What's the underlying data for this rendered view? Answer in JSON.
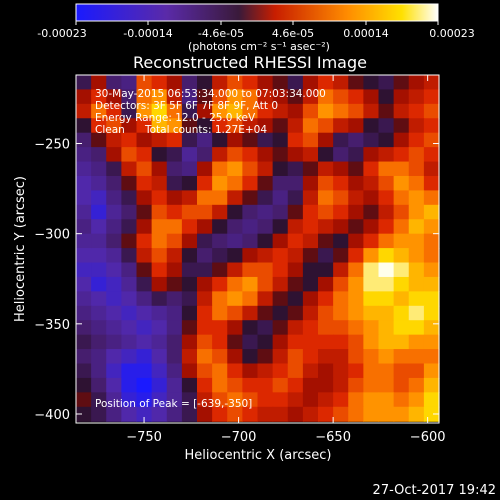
{
  "figure": {
    "title": "Reconstructed RHESSI Image",
    "footer_timestamp": "27-Oct-2017 19:42"
  },
  "colorbar": {
    "tick_labels": [
      "-0.00023",
      "-0.00014",
      "-4.6e-05",
      "4.6e-05",
      "0.00014",
      "0.00023"
    ],
    "unit_label": "(photons cm⁻² s⁻¹ asec⁻²)",
    "range": [
      -0.00023,
      0.00023
    ]
  },
  "annotations": {
    "time_range": "30-May-2015 06:53:34.000 to 07:03:34.000",
    "detectors": "Detectors: 3F 5F 6F 7F 8F 9F, Att 0",
    "energy_range": "Energy Range: 12.0 - 25.0 keV",
    "algorithm": "Clean",
    "total_counts": "Total counts: 1.27E+04",
    "peak_position": "Position of Peak = [-639,-350]"
  },
  "chart_data": {
    "type": "heatmap",
    "title": "Reconstructed RHESSI Image",
    "xlabel": "Heliocentric X (arcsec)",
    "ylabel": "Heliocentric Y (arcsec)",
    "xlim": [
      -786,
      -594
    ],
    "ylim": [
      -405,
      -212
    ],
    "xticks": [
      -750,
      -700,
      -650,
      -600
    ],
    "yticks": [
      -250,
      -300,
      -350,
      -400
    ],
    "xtick_labels": [
      "−750",
      "−700",
      "−650",
      "−600"
    ],
    "ytick_labels": [
      "−250",
      "−300",
      "−350",
      "−400"
    ],
    "colormap": "blue-purple-red-orange-yellow-white",
    "peak": [
      -639,
      -350
    ],
    "grid": {
      "x0": -786,
      "dx": 8,
      "nx": 24,
      "y0": -212,
      "dy": -8,
      "ny": 24,
      "values": [
        [
          -0.2,
          0.1,
          -0.3,
          -0.4,
          0.4,
          0.3,
          0.1,
          -0.3,
          -0.1,
          0.2,
          0.4,
          0.3,
          0.1,
          0.0,
          -0.2,
          0.1,
          0.3,
          0.2,
          0.0,
          -0.1,
          -0.2,
          0.0,
          0.1,
          0.2
        ],
        [
          0.1,
          0.3,
          0.1,
          -0.3,
          0.5,
          0.6,
          0.2,
          -0.4,
          0.0,
          0.4,
          0.6,
          0.5,
          0.2,
          0.1,
          0.0,
          0.2,
          0.5,
          0.4,
          0.3,
          0.1,
          -0.1,
          0.1,
          0.2,
          0.3
        ],
        [
          0.2,
          0.5,
          0.3,
          -0.2,
          0.6,
          0.8,
          0.5,
          -0.2,
          0.1,
          0.6,
          0.7,
          0.5,
          0.3,
          0.2,
          0.1,
          0.4,
          0.6,
          0.5,
          0.4,
          0.2,
          0.0,
          0.2,
          0.3,
          0.4
        ],
        [
          -0.1,
          0.3,
          0.4,
          0.1,
          0.3,
          0.7,
          0.6,
          0.0,
          -0.1,
          0.3,
          0.4,
          0.2,
          0.1,
          0.0,
          0.2,
          0.5,
          0.4,
          0.2,
          0.1,
          -0.1,
          -0.2,
          0.0,
          0.2,
          0.3
        ],
        [
          -0.3,
          0.0,
          0.2,
          0.3,
          0.1,
          0.2,
          0.3,
          -0.2,
          -0.4,
          -0.1,
          0.1,
          0.0,
          -0.2,
          -0.1,
          0.3,
          0.4,
          0.1,
          -0.2,
          -0.3,
          -0.2,
          -0.1,
          0.1,
          0.3,
          0.4
        ],
        [
          -0.4,
          -0.3,
          0.1,
          0.4,
          0.3,
          -0.1,
          -0.2,
          -0.5,
          -0.3,
          0.2,
          0.4,
          0.3,
          0.1,
          0.0,
          0.1,
          0.2,
          -0.1,
          -0.3,
          -0.2,
          0.1,
          0.2,
          0.3,
          0.4,
          0.3
        ],
        [
          -0.5,
          -0.4,
          -0.2,
          0.2,
          0.4,
          0.1,
          -0.3,
          -0.4,
          0.1,
          0.5,
          0.6,
          0.4,
          0.2,
          -0.1,
          -0.2,
          0.0,
          0.2,
          0.1,
          0.0,
          0.3,
          0.5,
          0.5,
          0.4,
          0.2
        ],
        [
          -0.6,
          -0.5,
          -0.3,
          0.0,
          0.3,
          0.2,
          -0.2,
          -0.1,
          0.3,
          0.6,
          0.5,
          0.3,
          0.0,
          -0.3,
          -0.3,
          0.1,
          0.4,
          0.3,
          0.1,
          0.2,
          0.4,
          0.6,
          0.5,
          0.3
        ],
        [
          -0.6,
          -0.7,
          -0.4,
          -0.2,
          0.1,
          0.3,
          0.1,
          0.2,
          0.5,
          0.5,
          0.2,
          0.0,
          -0.2,
          -0.4,
          -0.2,
          0.2,
          0.5,
          0.4,
          0.2,
          0.1,
          0.3,
          0.5,
          0.6,
          0.5
        ],
        [
          -0.5,
          -0.8,
          -0.5,
          -0.3,
          0.0,
          0.4,
          0.3,
          0.4,
          0.4,
          0.2,
          -0.1,
          -0.3,
          -0.4,
          -0.3,
          0.0,
          0.3,
          0.4,
          0.3,
          0.1,
          0.0,
          0.2,
          0.4,
          0.6,
          0.7
        ],
        [
          -0.4,
          -0.6,
          -0.4,
          -0.2,
          0.1,
          0.5,
          0.5,
          0.3,
          0.1,
          -0.1,
          -0.3,
          -0.4,
          -0.3,
          -0.1,
          0.2,
          0.3,
          0.2,
          0.1,
          0.0,
          0.1,
          0.3,
          0.5,
          0.7,
          0.6
        ],
        [
          -0.5,
          -0.5,
          -0.3,
          0.0,
          0.3,
          0.5,
          0.4,
          0.1,
          -0.2,
          -0.3,
          -0.4,
          -0.3,
          -0.1,
          0.1,
          0.3,
          0.2,
          0.0,
          -0.1,
          0.1,
          0.3,
          0.5,
          0.6,
          0.6,
          0.5
        ],
        [
          -0.6,
          -0.6,
          -0.5,
          -0.2,
          0.2,
          0.4,
          0.2,
          -0.1,
          -0.3,
          -0.2,
          -0.1,
          0.1,
          0.2,
          0.3,
          0.2,
          0.0,
          -0.2,
          0.0,
          0.3,
          0.6,
          0.8,
          0.7,
          0.6,
          0.5
        ],
        [
          -0.7,
          -0.7,
          -0.6,
          -0.4,
          0.0,
          0.3,
          0.1,
          -0.2,
          -0.2,
          0.0,
          0.2,
          0.4,
          0.4,
          0.3,
          0.1,
          -0.1,
          -0.1,
          0.2,
          0.5,
          0.9,
          1.0,
          0.9,
          0.7,
          0.6
        ],
        [
          -0.6,
          -0.8,
          -0.7,
          -0.5,
          -0.2,
          0.1,
          0.0,
          -0.1,
          0.1,
          0.3,
          0.5,
          0.6,
          0.4,
          0.2,
          0.0,
          -0.1,
          0.1,
          0.4,
          0.6,
          0.9,
          0.9,
          0.8,
          0.7,
          0.7
        ],
        [
          -0.5,
          -0.6,
          -0.7,
          -0.6,
          -0.4,
          -0.2,
          -0.3,
          -0.2,
          0.2,
          0.5,
          0.6,
          0.5,
          0.2,
          0.0,
          -0.1,
          0.1,
          0.3,
          0.5,
          0.6,
          0.8,
          0.8,
          0.7,
          0.8,
          0.8
        ],
        [
          -0.4,
          -0.5,
          -0.6,
          -0.7,
          -0.6,
          -0.5,
          -0.4,
          -0.1,
          0.3,
          0.5,
          0.4,
          0.2,
          0.0,
          -0.1,
          0.0,
          0.2,
          0.4,
          0.5,
          0.6,
          0.7,
          0.7,
          0.8,
          0.9,
          0.8
        ],
        [
          -0.3,
          -0.4,
          -0.5,
          -0.6,
          -0.7,
          -0.6,
          -0.4,
          0.0,
          0.3,
          0.3,
          0.1,
          -0.1,
          -0.2,
          0.0,
          0.2,
          0.3,
          0.4,
          0.4,
          0.5,
          0.6,
          0.7,
          0.8,
          0.8,
          0.7
        ],
        [
          -0.2,
          -0.3,
          -0.4,
          -0.5,
          -0.6,
          -0.5,
          -0.3,
          0.1,
          0.4,
          0.3,
          0.0,
          -0.2,
          -0.1,
          0.1,
          0.3,
          0.3,
          0.3,
          0.3,
          0.4,
          0.6,
          0.7,
          0.7,
          0.6,
          0.6
        ],
        [
          -0.3,
          -0.4,
          -0.6,
          -0.7,
          -0.8,
          -0.6,
          -0.3,
          0.2,
          0.5,
          0.4,
          0.1,
          -0.1,
          0.0,
          0.2,
          0.4,
          0.3,
          0.2,
          0.2,
          0.4,
          0.5,
          0.6,
          0.5,
          0.5,
          0.5
        ],
        [
          -0.2,
          -0.4,
          -0.7,
          -0.9,
          -0.9,
          -0.7,
          -0.4,
          0.1,
          0.4,
          0.5,
          0.3,
          0.1,
          0.2,
          0.3,
          0.4,
          0.2,
          0.1,
          0.2,
          0.3,
          0.5,
          0.5,
          0.4,
          0.4,
          0.6
        ],
        [
          -0.1,
          -0.3,
          -0.6,
          -0.9,
          -1.0,
          -0.8,
          -0.5,
          -0.1,
          0.3,
          0.5,
          0.4,
          0.3,
          0.3,
          0.4,
          0.3,
          0.1,
          0.1,
          0.2,
          0.4,
          0.5,
          0.5,
          0.4,
          0.5,
          0.7
        ],
        [
          0.0,
          -0.2,
          -0.5,
          -0.8,
          -0.9,
          -0.7,
          -0.5,
          -0.2,
          0.2,
          0.4,
          0.5,
          0.4,
          0.3,
          0.3,
          0.2,
          0.1,
          0.2,
          0.3,
          0.5,
          0.6,
          0.6,
          0.5,
          0.6,
          0.8
        ],
        [
          -0.1,
          -0.2,
          -0.4,
          -0.6,
          -0.7,
          -0.6,
          -0.4,
          -0.2,
          0.1,
          0.3,
          0.4,
          0.3,
          0.2,
          0.2,
          0.1,
          0.2,
          0.3,
          0.4,
          0.5,
          0.6,
          0.6,
          0.6,
          0.7,
          0.8
        ]
      ]
    }
  }
}
